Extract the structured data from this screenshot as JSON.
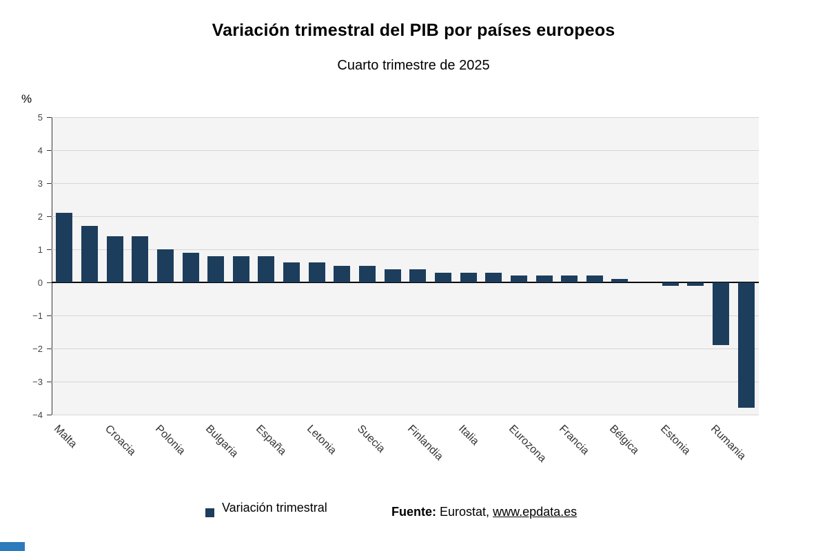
{
  "page": {
    "title": "Variación trimestral del PIB por países europeos",
    "subtitle": "Cuarto trimestre de 2025"
  },
  "chart_data": {
    "type": "bar",
    "title": "Variación trimestral del PIB por países europeos",
    "subtitle": "Cuarto trimestre de 2025",
    "unit_label": "%",
    "ylim": [
      -4,
      5
    ],
    "yticks": [
      5,
      4,
      3,
      2,
      1,
      0,
      -1,
      -2,
      -3,
      -4
    ],
    "grid": true,
    "legend_position": "bottom",
    "series_name": "Variación trimestral",
    "bar_color": "#1d3d5c",
    "plot_bg": "#f4f4f4",
    "bars": [
      {
        "label": "Malta",
        "value": 2.1
      },
      {
        "label": "",
        "value": 1.7
      },
      {
        "label": "Croacia",
        "value": 1.4
      },
      {
        "label": "",
        "value": 1.4
      },
      {
        "label": "Polonia",
        "value": 1.0
      },
      {
        "label": "",
        "value": 0.9
      },
      {
        "label": "Bulgaria",
        "value": 0.8
      },
      {
        "label": "",
        "value": 0.8
      },
      {
        "label": "España",
        "value": 0.8
      },
      {
        "label": "",
        "value": 0.6
      },
      {
        "label": "Letonia",
        "value": 0.6
      },
      {
        "label": "",
        "value": 0.5
      },
      {
        "label": "Suecia",
        "value": 0.5
      },
      {
        "label": "",
        "value": 0.4
      },
      {
        "label": "Finlandia",
        "value": 0.4
      },
      {
        "label": "",
        "value": 0.3
      },
      {
        "label": "Italia",
        "value": 0.3
      },
      {
        "label": "",
        "value": 0.3
      },
      {
        "label": "Eurozona",
        "value": 0.2
      },
      {
        "label": "",
        "value": 0.2
      },
      {
        "label": "Francia",
        "value": 0.2
      },
      {
        "label": "",
        "value": 0.2
      },
      {
        "label": "Bélgica",
        "value": 0.1
      },
      {
        "label": "",
        "value": 0.0
      },
      {
        "label": "Estonia",
        "value": -0.1
      },
      {
        "label": "",
        "value": -0.1
      },
      {
        "label": "Rumania",
        "value": -1.9
      },
      {
        "label": "",
        "value": -3.8
      }
    ]
  },
  "legend": {
    "label": "Variación trimestral",
    "color": "#1d3d5c"
  },
  "footer": {
    "source_label": "Fuente:",
    "source_text": "Eurostat,",
    "source_link": "www.epdata.es"
  },
  "branding": {
    "corner_color": "#2d7abc"
  }
}
